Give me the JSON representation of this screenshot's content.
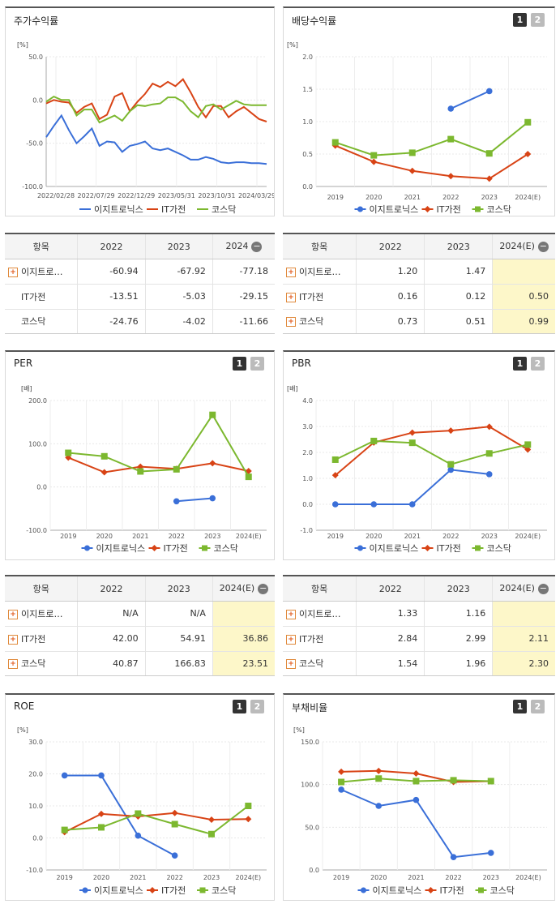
{
  "colors": {
    "eas": "#3a6fd8",
    "it": "#d84315",
    "kosdaq": "#7cb82f"
  },
  "legend": [
    "이지트로닉스",
    "IT가전",
    "코스닥"
  ],
  "pager": [
    "1",
    "2"
  ],
  "stock": {
    "title": "주가수익률",
    "unit": "[%]",
    "chart_data": {
      "type": "line",
      "title": "주가수익률",
      "ylabel": "[%]",
      "ylim": [
        -100,
        50
      ],
      "yticks": [
        "50.0",
        "0.0",
        "-50.0",
        "-100.0"
      ],
      "xticks": [
        "2022/02/28",
        "2022/07/29",
        "2022/12/29",
        "2023/05/31",
        "2023/10/31",
        "2024/03/29"
      ],
      "series": [
        {
          "name": "이지트로닉스",
          "key": "eas",
          "values": [
            -43,
            -30,
            -18,
            -35,
            -50,
            -42,
            -33,
            -53,
            -48,
            -49,
            -60,
            -53,
            -51,
            -48,
            -56,
            -58,
            -56,
            -60,
            -64,
            -69,
            -69,
            -66,
            -68,
            -72,
            -73,
            -72,
            -72,
            -73,
            -73,
            -74
          ]
        },
        {
          "name": "IT가전",
          "key": "it",
          "values": [
            -4,
            0,
            -2,
            -3,
            -15,
            -8,
            -4,
            -22,
            -17,
            4,
            8,
            -13,
            -2,
            7,
            19,
            15,
            21,
            16,
            24,
            9,
            -8,
            -20,
            -7,
            -7,
            -20,
            -13,
            -8,
            -15,
            -22,
            -25
          ]
        },
        {
          "name": "코스닥",
          "key": "kosdaq",
          "values": [
            -2,
            4,
            0,
            0,
            -18,
            -11,
            -11,
            -26,
            -22,
            -18,
            -24,
            -13,
            -6,
            -7,
            -5,
            -4,
            3,
            3,
            -2,
            -13,
            -20,
            -7,
            -5,
            -11,
            -6,
            -1,
            -5,
            -6,
            -6,
            -6
          ]
        }
      ]
    }
  },
  "dividend": {
    "title": "배당수익률",
    "unit": "[%]",
    "chart_data": {
      "type": "line",
      "title": "배당수익률",
      "ylim": [
        0.0,
        2.0
      ],
      "yticks": [
        "2.0",
        "1.5",
        "1.0",
        "0.5",
        "0.0"
      ],
      "categories": [
        "2019",
        "2020",
        "2021",
        "2022",
        "2023",
        "2024(E)"
      ],
      "series": [
        {
          "name": "이지트로닉스",
          "key": "eas",
          "values": [
            null,
            null,
            null,
            1.2,
            1.47,
            null
          ]
        },
        {
          "name": "IT가전",
          "key": "it",
          "values": [
            0.63,
            0.38,
            0.24,
            0.16,
            0.12,
            0.5
          ]
        },
        {
          "name": "코스닥",
          "key": "kosdaq",
          "values": [
            0.68,
            0.48,
            0.52,
            0.73,
            0.51,
            0.99
          ]
        }
      ]
    }
  },
  "per": {
    "title": "PER",
    "unit": "[배]",
    "chart_data": {
      "type": "line",
      "title": "PER",
      "ylim": [
        -100,
        200
      ],
      "yticks": [
        "200.0",
        "100.0",
        "0.0",
        "-100.0"
      ],
      "categories": [
        "2019",
        "2020",
        "2021",
        "2022",
        "2023",
        "2024(E)"
      ],
      "series": [
        {
          "name": "이지트로닉스",
          "key": "eas",
          "values": [
            null,
            null,
            null,
            -33,
            -26,
            null
          ]
        },
        {
          "name": "IT가전",
          "key": "it",
          "values": [
            68,
            34,
            47,
            42.0,
            54.91,
            36.86
          ]
        },
        {
          "name": "코스닥",
          "key": "kosdaq",
          "values": [
            79,
            71,
            36,
            40.87,
            166.83,
            23.51
          ]
        }
      ]
    }
  },
  "pbr": {
    "title": "PBR",
    "unit": "[배]",
    "chart_data": {
      "type": "line",
      "title": "PBR",
      "ylim": [
        -1.0,
        4.0
      ],
      "yticks": [
        "4.0",
        "3.0",
        "2.0",
        "1.0",
        "0.0",
        "-1.0"
      ],
      "categories": [
        "2019",
        "2020",
        "2021",
        "2022",
        "2023",
        "2024(E)"
      ],
      "series": [
        {
          "name": "이지트로닉스",
          "key": "eas",
          "values": [
            0.0,
            0.0,
            0.0,
            1.33,
            1.16,
            null
          ]
        },
        {
          "name": "IT가전",
          "key": "it",
          "values": [
            1.12,
            2.38,
            2.76,
            2.84,
            2.99,
            2.11
          ]
        },
        {
          "name": "코스닥",
          "key": "kosdaq",
          "values": [
            1.72,
            2.44,
            2.37,
            1.54,
            1.96,
            2.3
          ]
        }
      ]
    }
  },
  "roe": {
    "title": "ROE",
    "unit": "[%]",
    "chart_data": {
      "type": "line",
      "title": "ROE",
      "ylim": [
        -10,
        30
      ],
      "yticks": [
        "30.0",
        "20.0",
        "10.0",
        "0.0",
        "-10.0"
      ],
      "categories": [
        "2019",
        "2020",
        "2021",
        "2022",
        "2023",
        "2024(E)"
      ],
      "series": [
        {
          "name": "이지트로닉스",
          "key": "eas",
          "values": [
            19.5,
            19.5,
            0.7,
            -5.5,
            null,
            null
          ]
        },
        {
          "name": "IT가전",
          "key": "it",
          "values": [
            1.8,
            7.5,
            6.7,
            7.8,
            5.7,
            5.9
          ]
        },
        {
          "name": "코스닥",
          "key": "kosdaq",
          "values": [
            2.5,
            3.3,
            7.6,
            4.3,
            1.2,
            10.0
          ]
        }
      ]
    }
  },
  "debt": {
    "title": "부채비율",
    "unit": "[%]",
    "chart_data": {
      "type": "line",
      "title": "부채비율",
      "ylim": [
        0,
        150
      ],
      "yticks": [
        "150.0",
        "100.0",
        "50.0",
        "0.0"
      ],
      "categories": [
        "2019",
        "2020",
        "2021",
        "2022",
        "2023",
        "2024(E)"
      ],
      "series": [
        {
          "name": "이지트로닉스",
          "key": "eas",
          "values": [
            94,
            75,
            82,
            15,
            20,
            null
          ]
        },
        {
          "name": "IT가전",
          "key": "it",
          "values": [
            115,
            116,
            113,
            103,
            104,
            null
          ]
        },
        {
          "name": "코스닥",
          "key": "kosdaq",
          "values": [
            103,
            107,
            104,
            105,
            104,
            null
          ]
        }
      ]
    }
  },
  "tables": {
    "stock": {
      "headers": [
        "항목",
        "2022",
        "2023",
        "2024"
      ],
      "rows": [
        {
          "label": "이지트로…",
          "plus": true,
          "values": [
            "-60.94",
            "-67.92",
            "-77.18"
          ]
        },
        {
          "label": "IT가전",
          "plus": false,
          "values": [
            "-13.51",
            "-5.03",
            "-29.15"
          ]
        },
        {
          "label": "코스닥",
          "plus": false,
          "values": [
            "-24.76",
            "-4.02",
            "-11.66"
          ]
        }
      ]
    },
    "dividend": {
      "headers": [
        "항목",
        "2022",
        "2023",
        "2024(E)"
      ],
      "rows": [
        {
          "label": "이지트로…",
          "plus": true,
          "values": [
            "1.20",
            "1.47",
            ""
          ]
        },
        {
          "label": "IT가전",
          "plus": true,
          "values": [
            "0.16",
            "0.12",
            "0.50"
          ]
        },
        {
          "label": "코스닥",
          "plus": true,
          "values": [
            "0.73",
            "0.51",
            "0.99"
          ]
        }
      ]
    },
    "per": {
      "headers": [
        "항목",
        "2022",
        "2023",
        "2024(E)"
      ],
      "rows": [
        {
          "label": "이지트로…",
          "plus": true,
          "values": [
            "N/A",
            "N/A",
            ""
          ]
        },
        {
          "label": "IT가전",
          "plus": true,
          "values": [
            "42.00",
            "54.91",
            "36.86"
          ]
        },
        {
          "label": "코스닥",
          "plus": true,
          "values": [
            "40.87",
            "166.83",
            "23.51"
          ]
        }
      ]
    },
    "pbr": {
      "headers": [
        "항목",
        "2022",
        "2023",
        "2024(E)"
      ],
      "rows": [
        {
          "label": "이지트로…",
          "plus": true,
          "values": [
            "1.33",
            "1.16",
            ""
          ]
        },
        {
          "label": "IT가전",
          "plus": true,
          "values": [
            "2.84",
            "2.99",
            "2.11"
          ]
        },
        {
          "label": "코스닥",
          "plus": true,
          "values": [
            "1.54",
            "1.96",
            "2.30"
          ]
        }
      ]
    }
  }
}
